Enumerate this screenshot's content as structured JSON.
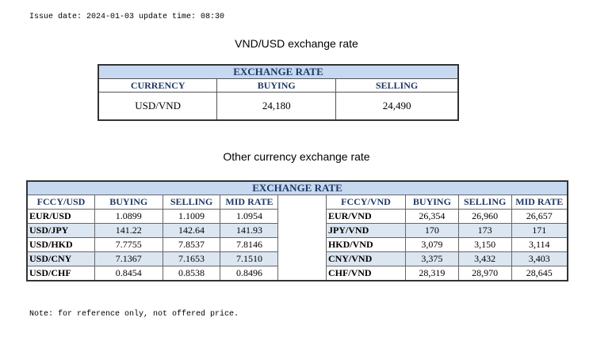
{
  "header": {
    "issue": "Issue date: 2024-01-03 update time: 08:30"
  },
  "main_title": "VND/USD exchange rate",
  "main_table": {
    "caption": "EXCHANGE RATE",
    "columns": [
      "CURRENCY",
      "BUYING",
      "SELLING"
    ],
    "row": {
      "currency": "USD/VND",
      "buying": "24,180",
      "selling": "24,490"
    }
  },
  "other_title": "Other currency exchange rate",
  "other_table": {
    "caption": "EXCHANGE  RATE",
    "left_columns": [
      "FCCY/USD",
      "BUYING",
      "SELLING",
      "MID RATE"
    ],
    "right_columns": [
      "FCCY/VND",
      "BUYING",
      "SELLING",
      "MID RATE"
    ],
    "rows": [
      {
        "l": [
          "EUR/USD",
          "1.0899",
          "1.1009",
          "1.0954"
        ],
        "r": [
          "EUR/VND",
          "26,354",
          "26,960",
          "26,657"
        ]
      },
      {
        "l": [
          "USD/JPY",
          "141.22",
          "142.64",
          "141.93"
        ],
        "r": [
          "JPY/VND",
          "170",
          "173",
          "171"
        ]
      },
      {
        "l": [
          "USD/HKD",
          "7.7755",
          "7.8537",
          "7.8146"
        ],
        "r": [
          "HKD/VND",
          "3,079",
          "3,150",
          "3,114"
        ]
      },
      {
        "l": [
          "USD/CNY",
          "7.1367",
          "7.1653",
          "7.1510"
        ],
        "r": [
          "CNY/VND",
          "3,375",
          "3,432",
          "3,403"
        ]
      },
      {
        "l": [
          "USD/CHF",
          "0.8454",
          "0.8538",
          "0.8496"
        ],
        "r": [
          "CHF/VND",
          "28,319",
          "28,970",
          "28,645"
        ]
      }
    ]
  },
  "footer": {
    "note": "Note: for reference only, not offered price."
  },
  "colors": {
    "header_bg": "#c6d9f1",
    "header_text": "#1f3864",
    "row_shade": "#dce6f1"
  }
}
